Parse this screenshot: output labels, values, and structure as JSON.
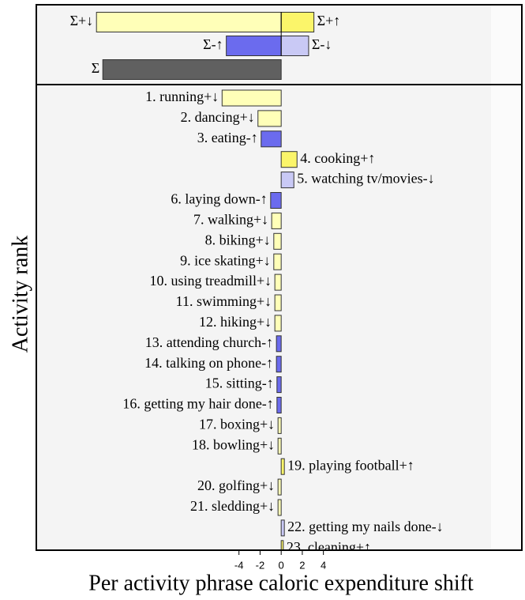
{
  "chart_data": {
    "type": "bar",
    "orientation": "horizontal",
    "y_axis_label": "Activity rank",
    "x_axis_label": "Per activity phrase caloric expenditure shift",
    "xlim": [
      -23.2,
      22.8
    ],
    "xticks": [
      -4,
      -2,
      0,
      2,
      4
    ],
    "summary": {
      "labels": [
        "Σ+↓",
        "Σ+↑",
        "Σ-↑",
        "Σ-↓",
        "Σ"
      ],
      "values": [
        -17.5,
        3.1,
        -5.2,
        2.6,
        -16.9
      ],
      "colors": [
        "#ffffb8",
        "#fbf56a",
        "#6b6bee",
        "#c9c9f5",
        "#606060"
      ],
      "rows": [
        0,
        0,
        1,
        1,
        2
      ]
    },
    "categories": [
      "1. running+↓",
      "2. dancing+↓",
      "3. eating-↑",
      "4. cooking+↑",
      "5. watching tv/movies-↓",
      "6. laying down-↑",
      "7. walking+↓",
      "8. biking+↓",
      "9. ice skating+↓",
      "10. using treadmill+↓",
      "11. swimming+↓",
      "12. hiking+↓",
      "13. attending church-↑",
      "14. talking on phone-↑",
      "15. sitting-↑",
      "16. getting my hair done-↑",
      "17. boxing+↓",
      "18. bowling+↓",
      "19. playing football+↑",
      "20. golfing+↓",
      "21. sledding+↓",
      "22. getting my nails done-↓",
      "23. cleaning+↑"
    ],
    "values": [
      -5.6,
      -2.2,
      -1.9,
      1.5,
      1.2,
      -1.0,
      -0.9,
      -0.7,
      -0.7,
      -0.6,
      -0.6,
      -0.6,
      -0.45,
      -0.45,
      -0.4,
      -0.4,
      -0.3,
      -0.3,
      0.3,
      -0.3,
      -0.3,
      0.3,
      0.2
    ],
    "colors": [
      "#ffffb8",
      "#ffffb8",
      "#6b6bee",
      "#fbf56a",
      "#c9c9f5",
      "#6b6bee",
      "#ffffb8",
      "#ffffb8",
      "#ffffb8",
      "#ffffb8",
      "#ffffb8",
      "#ffffb8",
      "#6b6bee",
      "#6b6bee",
      "#6b6bee",
      "#6b6bee",
      "#ffffb8",
      "#ffffb8",
      "#fbf56a",
      "#ffffb8",
      "#ffffb8",
      "#c9c9f5",
      "#fbf56a"
    ]
  }
}
